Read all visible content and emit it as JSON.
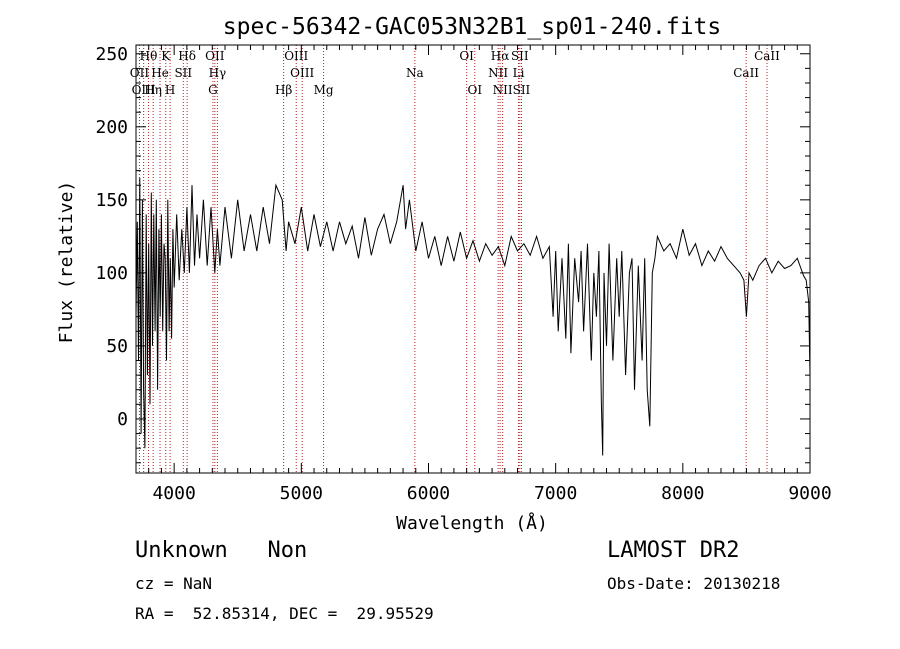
{
  "chart_data": {
    "type": "line",
    "title": "spec-56342-GAC053N32B1_sp01-240.fits",
    "xlabel": "Wavelength (Å)",
    "ylabel": "Flux (relative)",
    "xlim": [
      3700,
      9000
    ],
    "ylim": [
      -37,
      256
    ],
    "xticks": [
      4000,
      5000,
      6000,
      7000,
      8000,
      9000
    ],
    "yticks": [
      0,
      50,
      100,
      150,
      200,
      250
    ],
    "grid": false,
    "series": [
      {
        "line_color": "#000000",
        "x": [
          3700,
          3710,
          3720,
          3730,
          3740,
          3750,
          3760,
          3770,
          3780,
          3790,
          3800,
          3810,
          3820,
          3830,
          3840,
          3850,
          3860,
          3870,
          3880,
          3890,
          3900,
          3910,
          3920,
          3930,
          3940,
          3950,
          3960,
          3970,
          3980,
          3990,
          4000,
          4020,
          4040,
          4060,
          4080,
          4100,
          4120,
          4140,
          4160,
          4180,
          4200,
          4230,
          4260,
          4290,
          4320,
          4340,
          4360,
          4400,
          4450,
          4500,
          4550,
          4600,
          4650,
          4700,
          4750,
          4800,
          4850,
          4880,
          4900,
          4950,
          5000,
          5050,
          5100,
          5150,
          5200,
          5250,
          5300,
          5350,
          5400,
          5450,
          5500,
          5550,
          5600,
          5650,
          5700,
          5750,
          5800,
          5820,
          5850,
          5900,
          5950,
          6000,
          6050,
          6100,
          6150,
          6200,
          6250,
          6300,
          6350,
          6400,
          6450,
          6500,
          6550,
          6600,
          6650,
          6700,
          6750,
          6800,
          6850,
          6900,
          6950,
          6980,
          7000,
          7020,
          7050,
          7080,
          7100,
          7120,
          7150,
          7180,
          7200,
          7220,
          7250,
          7280,
          7300,
          7320,
          7340,
          7360,
          7370,
          7380,
          7400,
          7420,
          7450,
          7480,
          7500,
          7520,
          7550,
          7580,
          7600,
          7620,
          7650,
          7680,
          7700,
          7720,
          7740,
          7760,
          7780,
          7800,
          7850,
          7900,
          7950,
          8000,
          8050,
          8100,
          8150,
          8200,
          8250,
          8300,
          8350,
          8400,
          8450,
          8480,
          8500,
          8520,
          8550,
          8600,
          8650,
          8700,
          8750,
          8800,
          8850,
          8900,
          8950,
          8970,
          8990,
          9000
        ],
        "y": [
          70,
          135,
          40,
          165,
          -10,
          150,
          20,
          -20,
          140,
          30,
          120,
          10,
          155,
          50,
          140,
          60,
          150,
          20,
          130,
          70,
          140,
          60,
          120,
          110,
          40,
          150,
          60,
          110,
          55,
          130,
          90,
          140,
          95,
          130,
          100,
          145,
          100,
          160,
          105,
          140,
          110,
          150,
          105,
          145,
          100,
          130,
          105,
          145,
          110,
          150,
          115,
          140,
          115,
          145,
          120,
          160,
          150,
          115,
          135,
          120,
          145,
          115,
          140,
          118,
          135,
          115,
          135,
          120,
          132,
          110,
          138,
          112,
          130,
          140,
          120,
          135,
          160,
          130,
          150,
          115,
          135,
          110,
          125,
          105,
          125,
          108,
          128,
          110,
          122,
          108,
          120,
          112,
          118,
          105,
          125,
          115,
          120,
          112,
          125,
          110,
          118,
          70,
          115,
          60,
          110,
          55,
          120,
          45,
          110,
          80,
          115,
          60,
          120,
          40,
          100,
          70,
          115,
          10,
          -25,
          100,
          50,
          120,
          40,
          110,
          70,
          115,
          30,
          100,
          110,
          20,
          105,
          40,
          110,
          20,
          -5,
          100,
          110,
          125,
          115,
          120,
          110,
          130,
          112,
          120,
          105,
          115,
          108,
          118,
          110,
          105,
          100,
          95,
          70,
          100,
          95,
          105,
          110,
          100,
          108,
          103,
          105,
          110,
          98,
          95,
          80,
          30
        ]
      }
    ],
    "annotations": {
      "line_color": "#b22222",
      "lines": [
        {
          "name": "Hθ",
          "x": 3798,
          "row": 0
        },
        {
          "name": "K",
          "x": 3934,
          "row": 0
        },
        {
          "name": "Hδ",
          "x": 4102,
          "row": 0
        },
        {
          "name": "OII",
          "x": 4320,
          "row": 0
        },
        {
          "name": "OIII",
          "x": 4960,
          "row": 0
        },
        {
          "name": "OI",
          "x": 6300,
          "row": 0
        },
        {
          "name": "Hα",
          "x": 6563,
          "row": 0
        },
        {
          "name": "SII",
          "x": 6718,
          "row": 0
        },
        {
          "name": "CaII",
          "x": 8662,
          "row": 0
        },
        {
          "name": "OII",
          "x": 3727,
          "row": 1
        },
        {
          "name": "He",
          "x": 3889,
          "row": 1
        },
        {
          "name": "SII",
          "x": 4072,
          "row": 1
        },
        {
          "name": "Hγ",
          "x": 4340,
          "row": 1
        },
        {
          "name": "OIII",
          "x": 5007,
          "row": 1
        },
        {
          "name": "Na",
          "x": 5893,
          "row": 1
        },
        {
          "name": "NII",
          "x": 6548,
          "row": 1
        },
        {
          "name": "Li",
          "x": 6708,
          "row": 1
        },
        {
          "name": "CaII",
          "x": 8498,
          "row": 1
        },
        {
          "name": "OIII",
          "x": 3760,
          "row": 2
        },
        {
          "name": "Hη",
          "x": 3835,
          "row": 2
        },
        {
          "name": "H",
          "x": 3968,
          "row": 2
        },
        {
          "name": "G",
          "x": 4305,
          "row": 2
        },
        {
          "name": "Hβ",
          "x": 4861,
          "row": 2
        },
        {
          "name": "Mg",
          "x": 5175,
          "row": 2
        },
        {
          "name": "OI",
          "x": 6364,
          "row": 2
        },
        {
          "name": "NII",
          "x": 6583,
          "row": 2
        },
        {
          "name": "SII",
          "x": 6731,
          "row": 2
        }
      ]
    }
  },
  "info": {
    "class_text": "Unknown   Non",
    "survey": "LAMOST DR2",
    "cz": "cz = NaN",
    "obs_date": "Obs-Date: 20130218",
    "coords": "RA =  52.85314, DEC =  29.95529"
  }
}
